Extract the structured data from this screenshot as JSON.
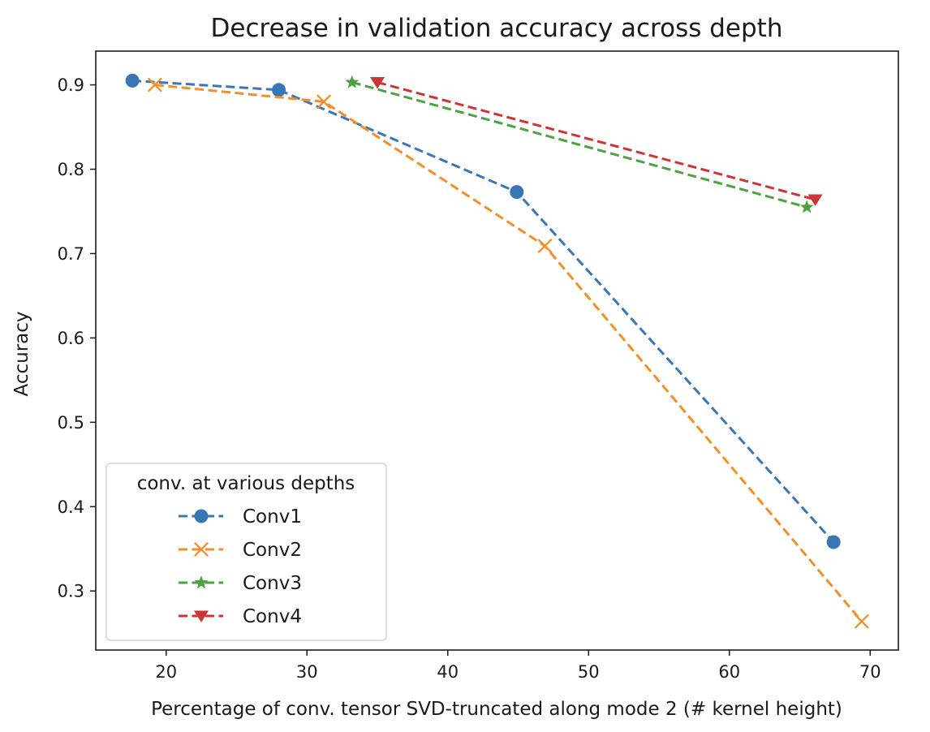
{
  "chart_data": {
    "type": "line",
    "title": "Decrease in validation accuracy across depth",
    "xlabel": "Percentage of conv. tensor SVD-truncated along mode 2 (# kernel height)",
    "ylabel": "Accuracy",
    "xlim": [
      15,
      72
    ],
    "ylim": [
      0.23,
      0.94
    ],
    "xticks": [
      20,
      30,
      40,
      50,
      60,
      70
    ],
    "yticks": [
      0.3,
      0.4,
      0.5,
      0.6,
      0.7,
      0.8,
      0.9
    ],
    "xtick_labels": [
      "20",
      "30",
      "40",
      "50",
      "60",
      "70"
    ],
    "ytick_labels": [
      "0.3",
      "0.4",
      "0.5",
      "0.6",
      "0.7",
      "0.8",
      "0.9"
    ],
    "grid": false,
    "legend": {
      "title": "conv. at various depths",
      "position": "lower-left"
    },
    "series": [
      {
        "name": "Conv1",
        "color": "#3a75b4",
        "marker": "circle",
        "linestyle": "dashed",
        "x": [
          17.6,
          28.0,
          44.9,
          67.4
        ],
        "y": [
          0.905,
          0.894,
          0.773,
          0.358
        ]
      },
      {
        "name": "Conv2",
        "color": "#f28e2b",
        "marker": "x",
        "linestyle": "dashed",
        "x": [
          19.2,
          31.2,
          46.9,
          69.4
        ],
        "y": [
          0.9,
          0.88,
          0.709,
          0.264
        ]
      },
      {
        "name": "Conv3",
        "color": "#4ea143",
        "marker": "star",
        "linestyle": "dashed",
        "x": [
          33.2,
          65.5
        ],
        "y": [
          0.903,
          0.755
        ]
      },
      {
        "name": "Conv4",
        "color": "#cc3535",
        "marker": "triangle-down",
        "linestyle": "dashed",
        "x": [
          35.0,
          66.1
        ],
        "y": [
          0.903,
          0.764
        ]
      }
    ]
  }
}
